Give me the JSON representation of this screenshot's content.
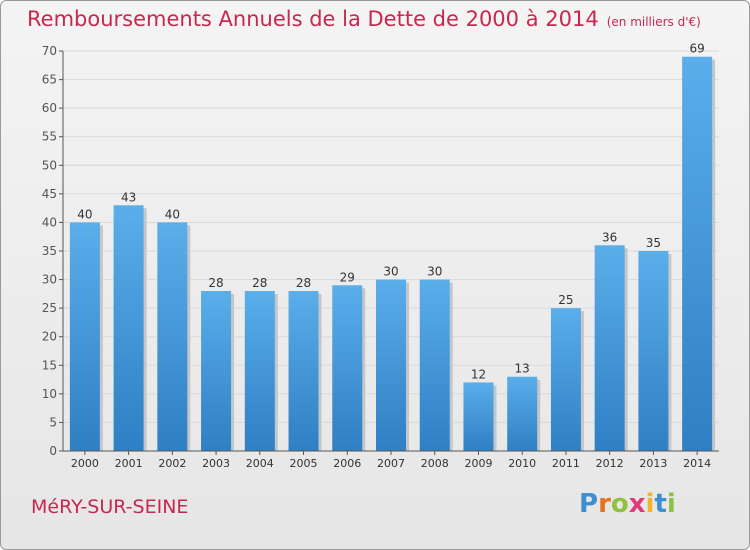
{
  "chart_data": {
    "type": "bar",
    "title": "Remboursements Annuels de la Dette de 2000 à 2014",
    "subtitle": "(en milliers d'€)",
    "categories": [
      "2000",
      "2001",
      "2002",
      "2003",
      "2004",
      "2005",
      "2006",
      "2007",
      "2008",
      "2009",
      "2010",
      "2011",
      "2012",
      "2013",
      "2014"
    ],
    "values": [
      40,
      43,
      40,
      28,
      28,
      28,
      29,
      30,
      30,
      12,
      13,
      25,
      36,
      35,
      69
    ],
    "yticks": [
      0,
      5,
      10,
      15,
      20,
      25,
      30,
      35,
      40,
      45,
      50,
      55,
      60,
      65,
      70
    ],
    "ylim": [
      0,
      70
    ],
    "grid": true,
    "xlabel": "",
    "ylabel": "",
    "bar_color": "#4a9ee0",
    "title_color": "#c8274e"
  },
  "footer": {
    "commune": "MéRY-SUR-SEINE",
    "brand": "Proxiti"
  }
}
